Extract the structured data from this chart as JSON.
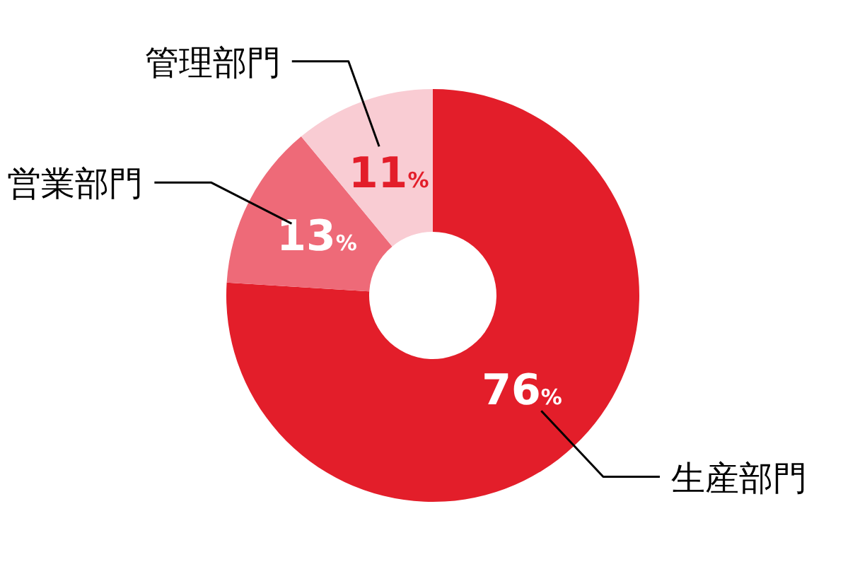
{
  "chart_data": {
    "type": "donut",
    "categories": [
      "生産部門",
      "営業部門",
      "管理部門"
    ],
    "values": [
      76,
      13,
      11
    ],
    "colors": [
      "#e31e2a",
      "#ee6a78",
      "#f9ccd3"
    ],
    "value_labels": [
      "76%",
      "13%",
      "11%"
    ]
  }
}
